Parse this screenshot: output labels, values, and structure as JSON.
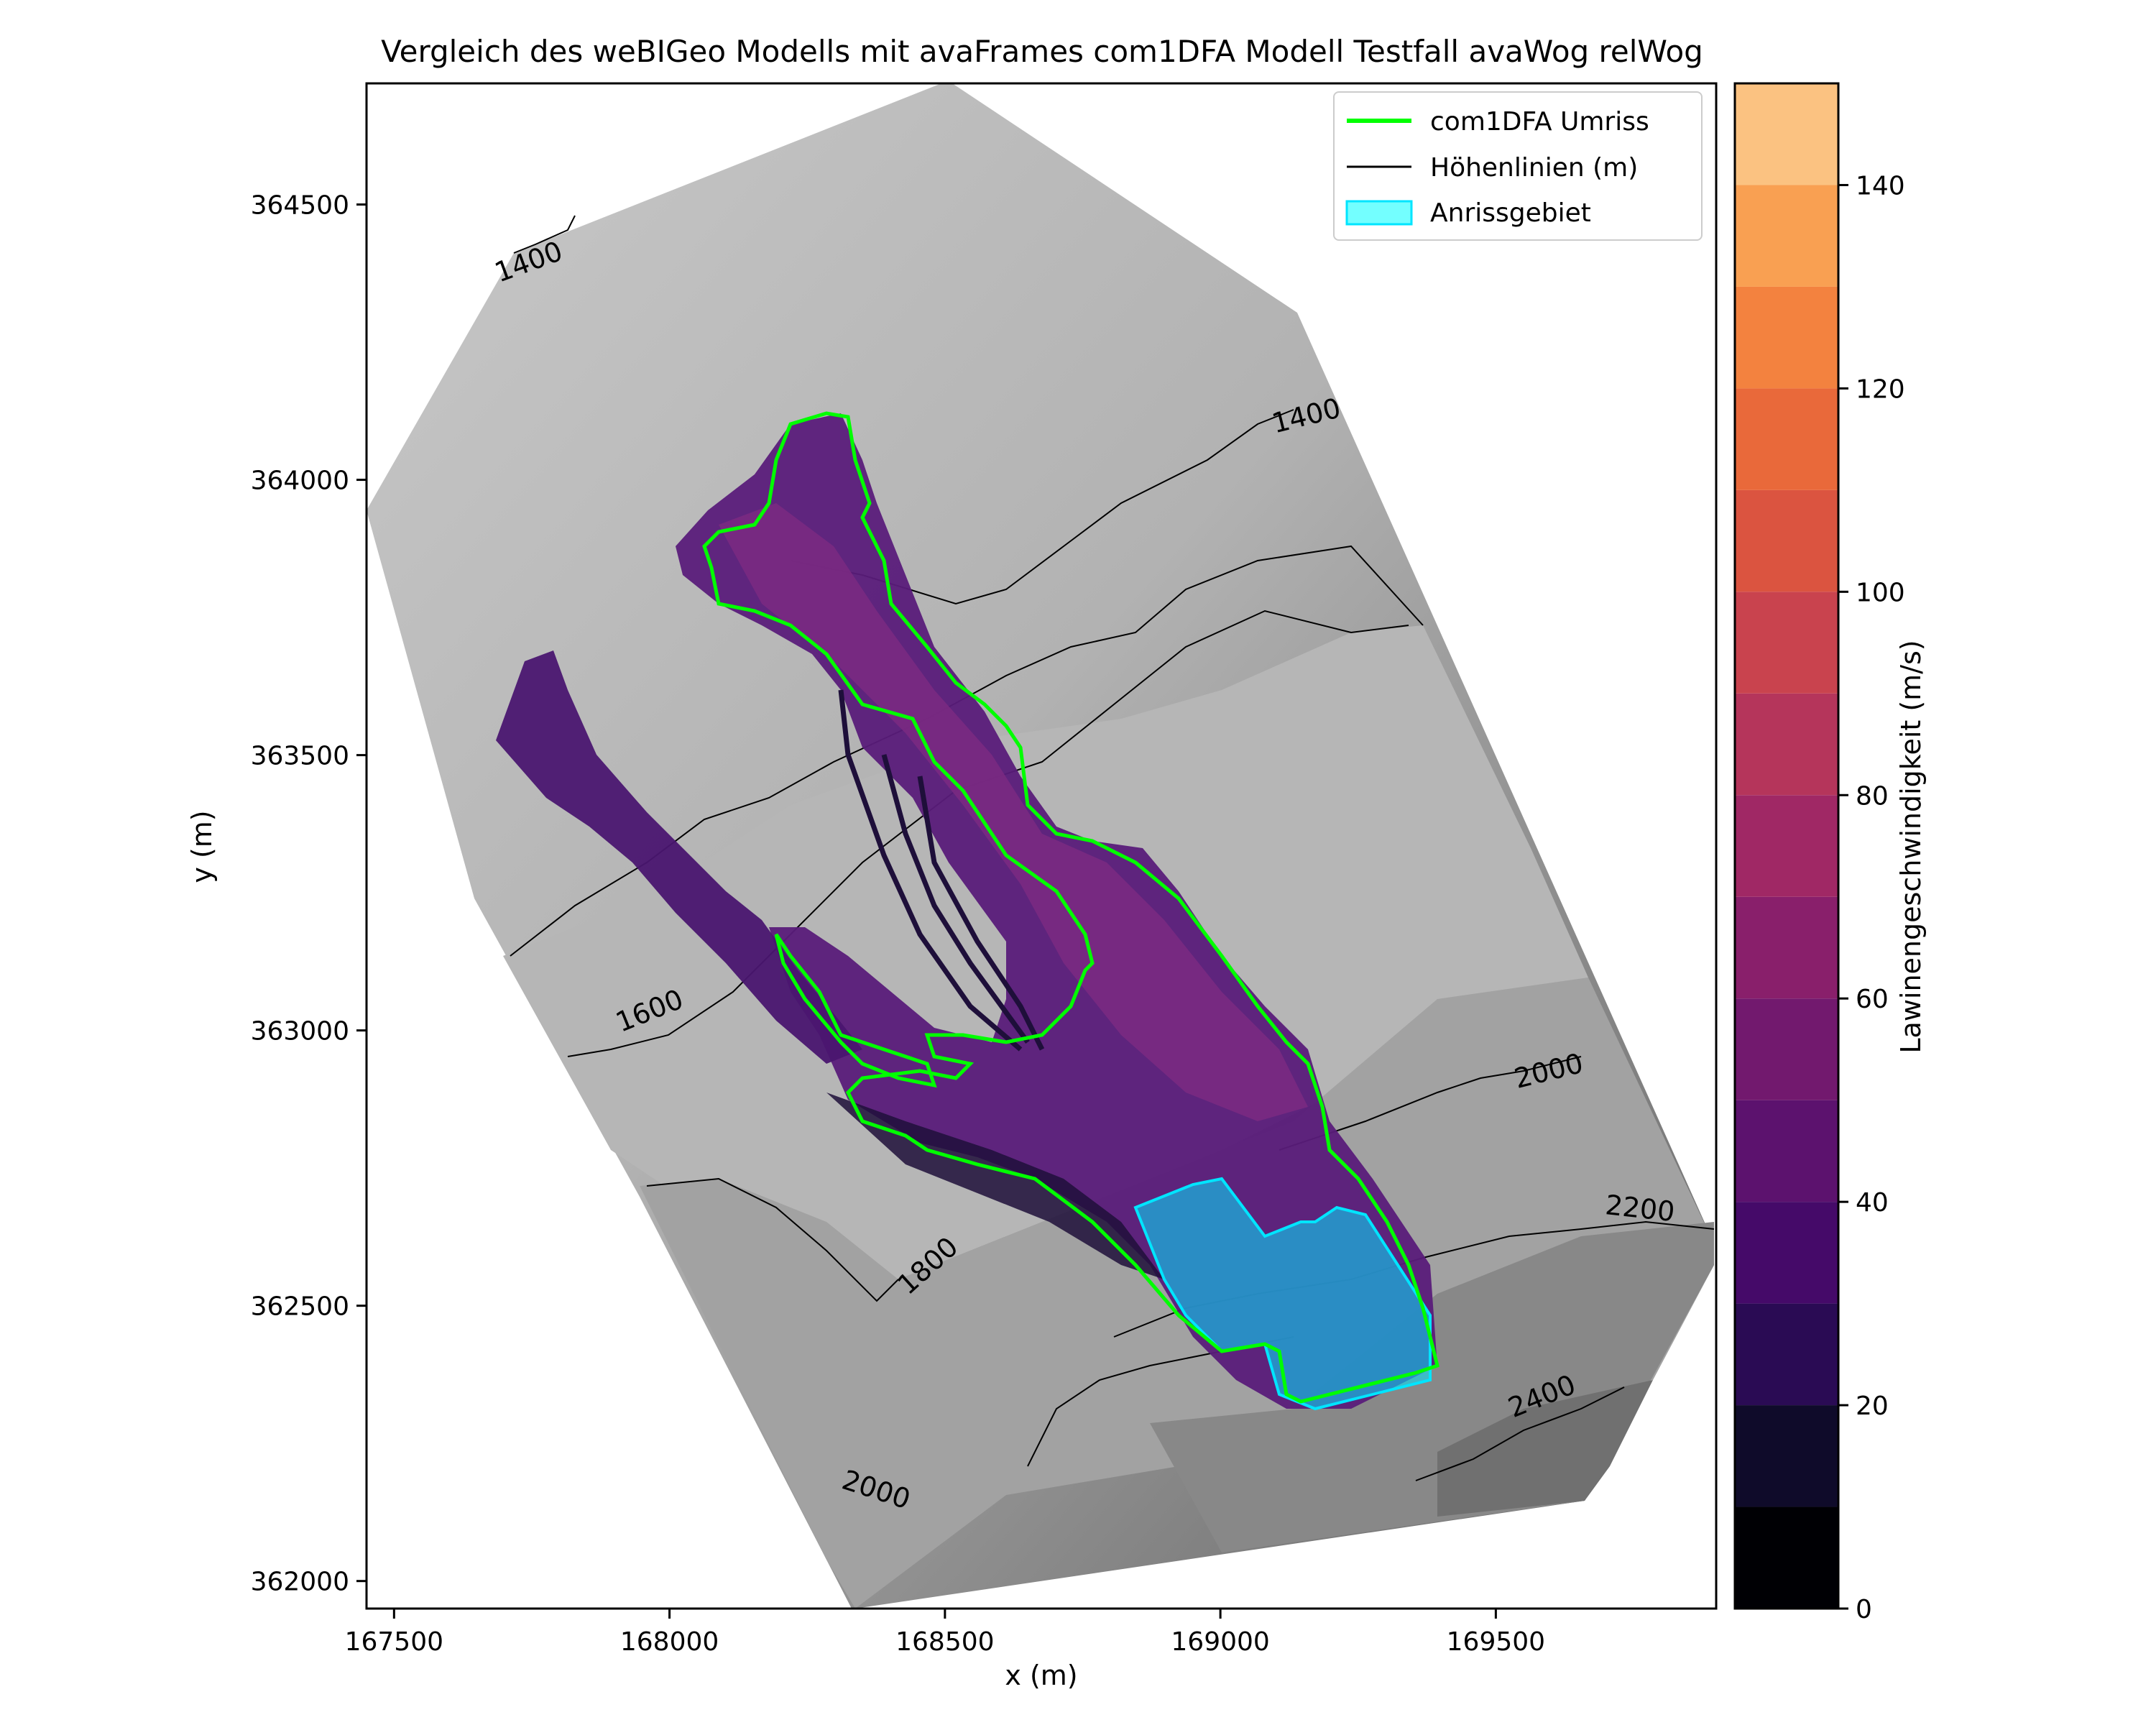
{
  "chart_data": {
    "type": "contour-map",
    "title": "Vergleich des weBIGeo Modells mit avaFrames com1DFA Modell Testfall avaWog relWog",
    "xlabel": "x (m)",
    "ylabel": "y (m)",
    "xlim": [
      167450,
      169900
    ],
    "ylim": [
      361950,
      364720
    ],
    "xticks": [
      167500,
      168000,
      168500,
      169000,
      169500
    ],
    "yticks": [
      362000,
      362500,
      363000,
      363500,
      364000,
      364500
    ],
    "colorbar": {
      "label": "Lawinengeschwindigkeit (m/s)",
      "range": [
        0,
        150
      ],
      "ticks": [
        0,
        20,
        40,
        60,
        80,
        100,
        120,
        140
      ],
      "levels": 15,
      "colormap": "magma"
    },
    "legend": {
      "placement": "top-right",
      "entries": [
        {
          "label": "com1DFA Umriss",
          "color": "#00ff00",
          "kind": "line"
        },
        {
          "label": "Höhenlinien (m)",
          "color": "#000000",
          "kind": "line"
        },
        {
          "label": "Anrissgebiet",
          "color": "#00ffff",
          "kind": "patch"
        }
      ]
    },
    "contour_labels": [
      {
        "text": "1400",
        "x": 167750,
        "y": 364380
      },
      {
        "text": "1400",
        "x": 169160,
        "y": 364100
      },
      {
        "text": "1600",
        "x": 167970,
        "y": 363020
      },
      {
        "text": "1800",
        "x": 168480,
        "y": 362560
      },
      {
        "text": "2000",
        "x": 168370,
        "y": 362150
      },
      {
        "text": "2000",
        "x": 169600,
        "y": 362910
      },
      {
        "text": "2200",
        "x": 169760,
        "y": 362660
      },
      {
        "text": "2400",
        "x": 169590,
        "y": 362320
      }
    ],
    "terrain_color_range": [
      "#c4c4c4",
      "#6a6a6a"
    ],
    "outline_color": "#00ff00",
    "release_area_color": "#00c8e0"
  }
}
